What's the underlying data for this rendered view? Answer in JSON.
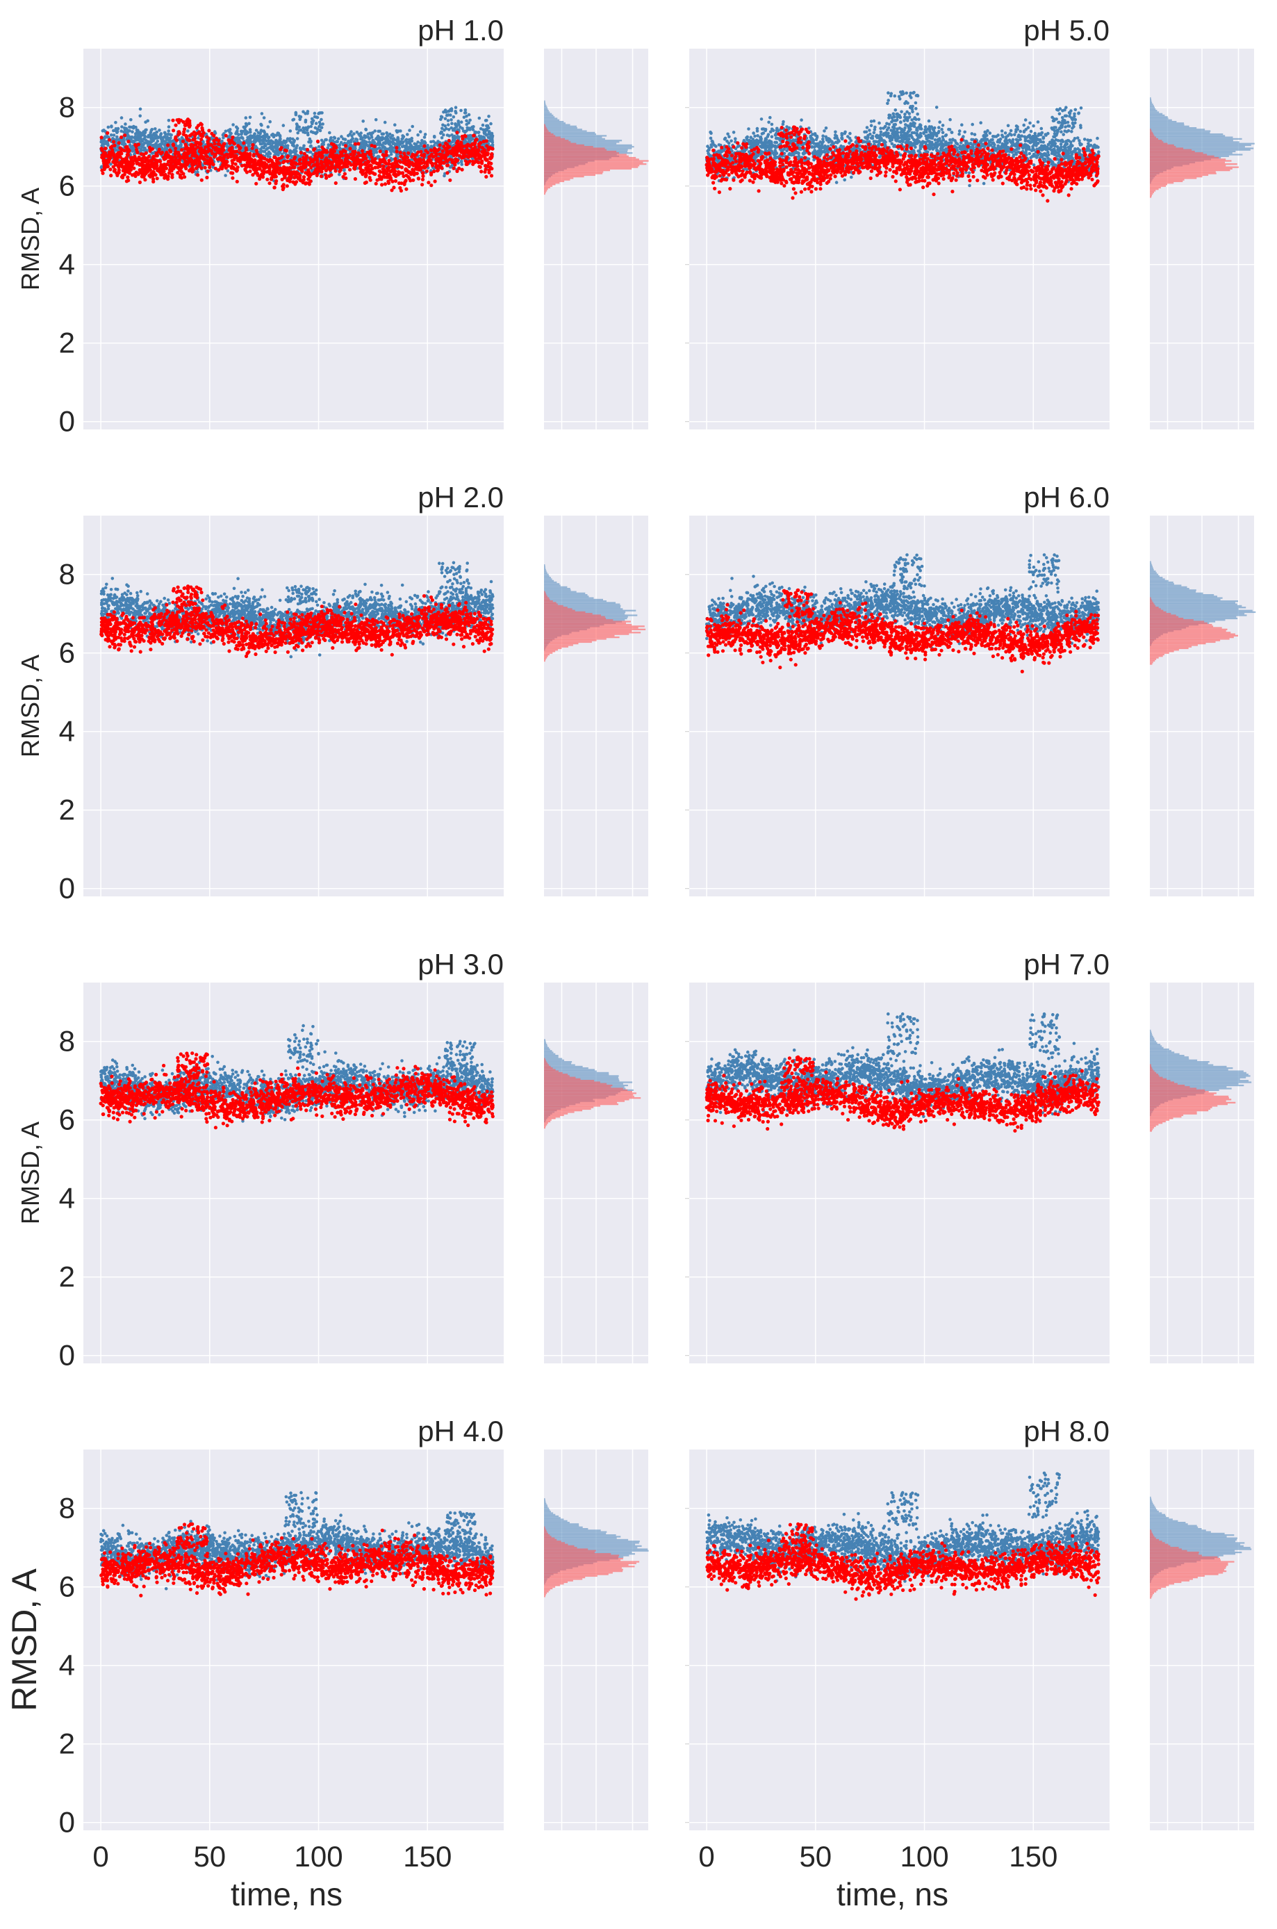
{
  "figure": {
    "bottom_xlabel": "time, ns"
  },
  "colors": {
    "panel_bg": "#eaeaf2",
    "grid": "#ffffff",
    "series_blue": "#4682b4",
    "series_red": "#ff0000",
    "hist_blue": "#5b8fc0",
    "hist_red": "#ff5a5a"
  },
  "chart_data": [
    {
      "type": "scatter",
      "title": "pH 1.0",
      "ylabel": "RMSD, A",
      "xlabel": "",
      "xlim": [
        -8,
        185
      ],
      "ylim": [
        -0.2,
        9.5
      ],
      "xticks": [
        0,
        50,
        100,
        150
      ],
      "yticks": [
        0,
        2,
        4,
        6,
        8
      ],
      "series": [
        {
          "name": "blue",
          "color": "#4682b4",
          "base": 6.95,
          "spread": 0.55,
          "points": 2400,
          "anomalies": [
            {
              "x": 95,
              "y": 7.9
            },
            {
              "x": 163,
              "y": 8.0
            }
          ]
        },
        {
          "name": "red",
          "color": "#ff0000",
          "base": 6.6,
          "spread": 0.5,
          "points": 1800,
          "anomalies": [
            {
              "x": 40,
              "y": 7.7
            }
          ]
        }
      ],
      "histogram": {
        "blue_peak": 6.9,
        "red_peak": 6.6,
        "red_max_count": 1.0,
        "blue_max_count": 0.85
      }
    },
    {
      "type": "scatter",
      "title": "pH 2.0",
      "ylabel": "RMSD, A",
      "xlabel": "",
      "xlim": [
        -8,
        185
      ],
      "ylim": [
        -0.2,
        9.5
      ],
      "xticks": [
        0,
        50,
        100,
        150
      ],
      "yticks": [
        0,
        2,
        4,
        6,
        8
      ],
      "series": [
        {
          "name": "blue",
          "color": "#4682b4",
          "base": 6.95,
          "spread": 0.55,
          "points": 2400,
          "anomalies": [
            {
              "x": 92,
              "y": 7.7
            },
            {
              "x": 162,
              "y": 8.3
            }
          ]
        },
        {
          "name": "red",
          "color": "#ff0000",
          "base": 6.6,
          "spread": 0.5,
          "points": 1800,
          "anomalies": [
            {
              "x": 40,
              "y": 7.7
            }
          ]
        }
      ],
      "histogram": {
        "blue_peak": 6.95,
        "red_peak": 6.6,
        "red_max_count": 0.95,
        "blue_max_count": 0.9
      }
    },
    {
      "type": "scatter",
      "title": "pH 3.0",
      "ylabel": "RMSD, A",
      "xlabel": "",
      "xlim": [
        -8,
        185
      ],
      "ylim": [
        -0.2,
        9.5
      ],
      "xticks": [
        0,
        50,
        100,
        150
      ],
      "yticks": [
        0,
        2,
        4,
        6,
        8
      ],
      "series": [
        {
          "name": "blue",
          "color": "#4682b4",
          "base": 6.8,
          "spread": 0.55,
          "points": 2400,
          "anomalies": [
            {
              "x": 93,
              "y": 8.4
            },
            {
              "x": 165,
              "y": 8.0
            }
          ]
        },
        {
          "name": "red",
          "color": "#ff0000",
          "base": 6.6,
          "spread": 0.5,
          "points": 1800,
          "anomalies": [
            {
              "x": 42,
              "y": 7.7
            }
          ]
        }
      ],
      "histogram": {
        "blue_peak": 6.8,
        "red_peak": 6.6,
        "red_max_count": 0.95,
        "blue_max_count": 0.9
      }
    },
    {
      "type": "scatter",
      "title": "pH 4.0",
      "ylabel": "RMSD, A",
      "xlabel": "time, ns",
      "xlim": [
        -8,
        185
      ],
      "ylim": [
        -0.2,
        9.5
      ],
      "xticks": [
        0,
        50,
        100,
        150
      ],
      "yticks": [
        0,
        2,
        4,
        6,
        8
      ],
      "series": [
        {
          "name": "blue",
          "color": "#4682b4",
          "base": 6.95,
          "spread": 0.55,
          "points": 2400,
          "anomalies": [
            {
              "x": 92,
              "y": 8.4
            },
            {
              "x": 165,
              "y": 7.9
            }
          ]
        },
        {
          "name": "red",
          "color": "#ff0000",
          "base": 6.55,
          "spread": 0.5,
          "points": 1800,
          "anomalies": [
            {
              "x": 42,
              "y": 7.6
            }
          ]
        }
      ],
      "histogram": {
        "blue_peak": 6.95,
        "red_peak": 6.55,
        "red_max_count": 0.9,
        "blue_max_count": 1.0
      }
    },
    {
      "type": "scatter",
      "title": "pH 5.0",
      "ylabel": "",
      "xlabel": "",
      "xlim": [
        -8,
        185
      ],
      "ylim": [
        -0.2,
        9.5
      ],
      "xticks": [
        0,
        50,
        100,
        150
      ],
      "yticks": [
        0,
        2,
        4,
        6,
        8
      ],
      "series": [
        {
          "name": "blue",
          "color": "#4682b4",
          "base": 6.95,
          "spread": 0.6,
          "points": 2400,
          "anomalies": [
            {
              "x": 90,
              "y": 8.4
            },
            {
              "x": 165,
              "y": 8.0
            }
          ]
        },
        {
          "name": "red",
          "color": "#ff0000",
          "base": 6.5,
          "spread": 0.5,
          "points": 1800,
          "anomalies": [
            {
              "x": 40,
              "y": 7.5
            }
          ]
        }
      ],
      "histogram": {
        "blue_peak": 6.95,
        "red_peak": 6.5,
        "red_max_count": 0.85,
        "blue_max_count": 1.0
      }
    },
    {
      "type": "scatter",
      "title": "pH 6.0",
      "ylabel": "",
      "xlabel": "",
      "xlim": [
        -8,
        185
      ],
      "ylim": [
        -0.2,
        9.5
      ],
      "xticks": [
        0,
        50,
        100,
        150
      ],
      "yticks": [
        0,
        2,
        4,
        6,
        8
      ],
      "series": [
        {
          "name": "blue",
          "color": "#4682b4",
          "base": 7.05,
          "spread": 0.55,
          "points": 2400,
          "anomalies": [
            {
              "x": 92,
              "y": 8.5
            },
            {
              "x": 155,
              "y": 8.5
            }
          ]
        },
        {
          "name": "red",
          "color": "#ff0000",
          "base": 6.45,
          "spread": 0.5,
          "points": 1800,
          "anomalies": [
            {
              "x": 42,
              "y": 7.6
            }
          ]
        }
      ],
      "histogram": {
        "blue_peak": 7.05,
        "red_peak": 6.45,
        "red_max_count": 0.85,
        "blue_max_count": 1.0
      }
    },
    {
      "type": "scatter",
      "title": "pH 7.0",
      "ylabel": "",
      "xlabel": "",
      "xlim": [
        -8,
        185
      ],
      "ylim": [
        -0.2,
        9.5
      ],
      "xticks": [
        0,
        50,
        100,
        150
      ],
      "yticks": [
        0,
        2,
        4,
        6,
        8
      ],
      "series": [
        {
          "name": "blue",
          "color": "#4682b4",
          "base": 7.0,
          "spread": 0.6,
          "points": 2400,
          "anomalies": [
            {
              "x": 90,
              "y": 8.7
            },
            {
              "x": 155,
              "y": 8.7
            }
          ]
        },
        {
          "name": "red",
          "color": "#ff0000",
          "base": 6.45,
          "spread": 0.5,
          "points": 1800,
          "anomalies": [
            {
              "x": 42,
              "y": 7.6
            }
          ]
        }
      ],
      "histogram": {
        "blue_peak": 7.0,
        "red_peak": 6.45,
        "red_max_count": 0.8,
        "blue_max_count": 1.0
      }
    },
    {
      "type": "scatter",
      "title": "pH 8.0",
      "ylabel": "",
      "xlabel": "time, ns",
      "xlim": [
        -8,
        185
      ],
      "ylim": [
        -0.2,
        9.5
      ],
      "xticks": [
        0,
        50,
        100,
        150
      ],
      "yticks": [
        0,
        2,
        4,
        6,
        8
      ],
      "series": [
        {
          "name": "blue",
          "color": "#4682b4",
          "base": 7.0,
          "spread": 0.6,
          "points": 2400,
          "anomalies": [
            {
              "x": 90,
              "y": 8.4
            },
            {
              "x": 155,
              "y": 8.9
            }
          ]
        },
        {
          "name": "red",
          "color": "#ff0000",
          "base": 6.5,
          "spread": 0.5,
          "points": 1800,
          "anomalies": [
            {
              "x": 42,
              "y": 7.6
            }
          ]
        }
      ],
      "histogram": {
        "blue_peak": 7.0,
        "red_peak": 6.5,
        "red_max_count": 0.85,
        "blue_max_count": 1.0
      }
    }
  ]
}
